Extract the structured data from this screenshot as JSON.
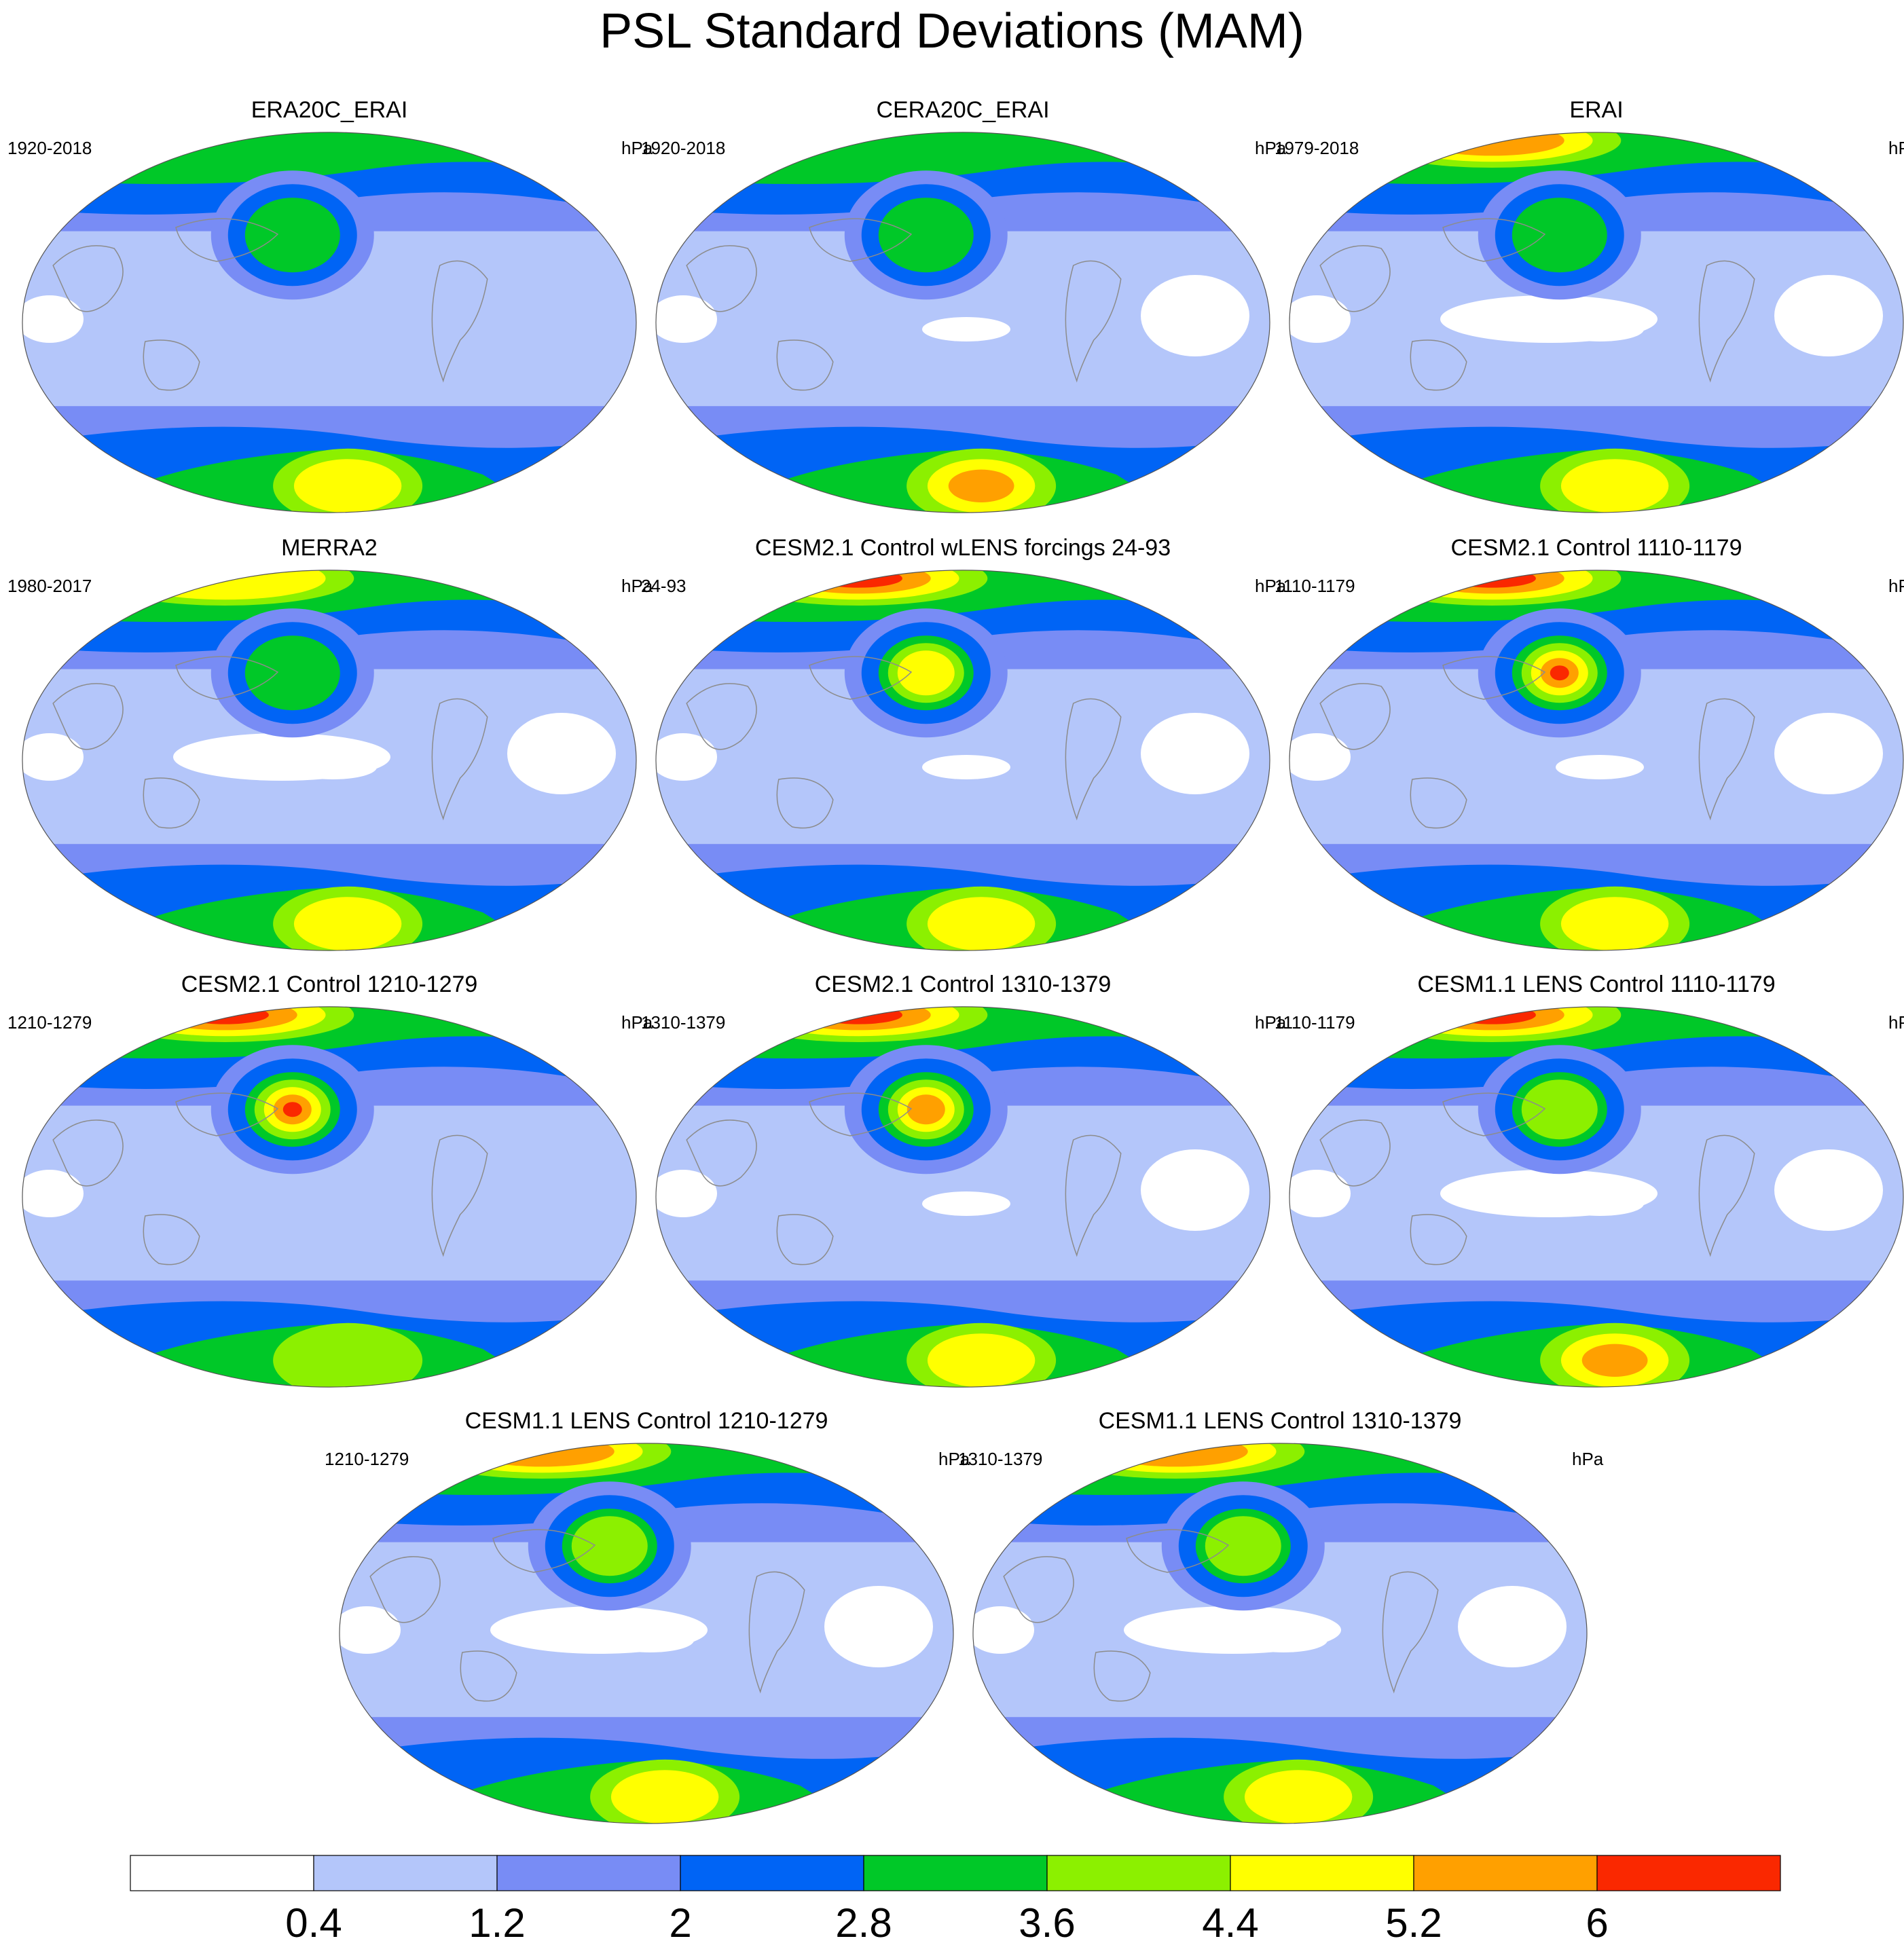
{
  "title": "PSL Standard Deviations (MAM)",
  "units": "hPa",
  "colors": {
    "levels": [
      "#ffffff",
      "#b4c6fa",
      "#788cf5",
      "#0064f5",
      "#00c828",
      "#8cf000",
      "#ffff00",
      "#ffa000",
      "#fa2800"
    ],
    "land_outline": "#8c8c8c",
    "map_border": "#555555"
  },
  "panels": [
    {
      "title": "ERA20C_ERAI",
      "years": "1920-2018",
      "units": "hPa",
      "nh_max": 4,
      "mid_max": 4,
      "sh_max": 6,
      "tropical_white": 1
    },
    {
      "title": "CERA20C_ERAI",
      "years": "1920-2018",
      "units": "hPa",
      "nh_max": 4,
      "mid_max": 4,
      "sh_max": 7,
      "tropical_white": 2
    },
    {
      "title": "ERAI",
      "years": "1979-2018",
      "units": "hPa",
      "nh_max": 7,
      "mid_max": 4,
      "sh_max": 6,
      "tropical_white": 3
    },
    {
      "title": "MERRA2",
      "years": "1980-2017",
      "units": "hPa",
      "nh_max": 6,
      "mid_max": 4,
      "sh_max": 6,
      "tropical_white": 3
    },
    {
      "title": "CESM2.1 Control wLENS forcings 24-93",
      "years": "24-93",
      "units": "hPa",
      "nh_max": 8,
      "mid_max": 6,
      "sh_max": 6,
      "tropical_white": 2
    },
    {
      "title": "CESM2.1 Control 1110-1179",
      "years": "1110-1179",
      "units": "hPa",
      "nh_max": 8,
      "mid_max": 8,
      "sh_max": 6,
      "tropical_white": 2
    },
    {
      "title": "CESM2.1 Control 1210-1279",
      "years": "1210-1279",
      "units": "hPa",
      "nh_max": 8,
      "mid_max": 8,
      "sh_max": 5,
      "tropical_white": 1
    },
    {
      "title": "CESM2.1 Control 1310-1379",
      "years": "1310-1379",
      "units": "hPa",
      "nh_max": 8,
      "mid_max": 7,
      "sh_max": 6,
      "tropical_white": 2
    },
    {
      "title": "CESM1.1 LENS Control 1110-1179",
      "years": "1110-1179",
      "units": "hPa",
      "nh_max": 8,
      "mid_max": 5,
      "sh_max": 7,
      "tropical_white": 3
    },
    {
      "title": "CESM1.1 LENS Control 1210-1279",
      "years": "1210-1279",
      "units": "hPa",
      "nh_max": 7,
      "mid_max": 5,
      "sh_max": 6,
      "tropical_white": 3
    },
    {
      "title": "CESM1.1 LENS Control 1310-1379",
      "years": "1310-1379",
      "units": "hPa",
      "nh_max": 7,
      "mid_max": 5,
      "sh_max": 6,
      "tropical_white": 3
    }
  ],
  "colorbar": {
    "labels": [
      "0.4",
      "1.2",
      "2",
      "2.8",
      "3.6",
      "4.4",
      "5.2",
      "6"
    ]
  }
}
